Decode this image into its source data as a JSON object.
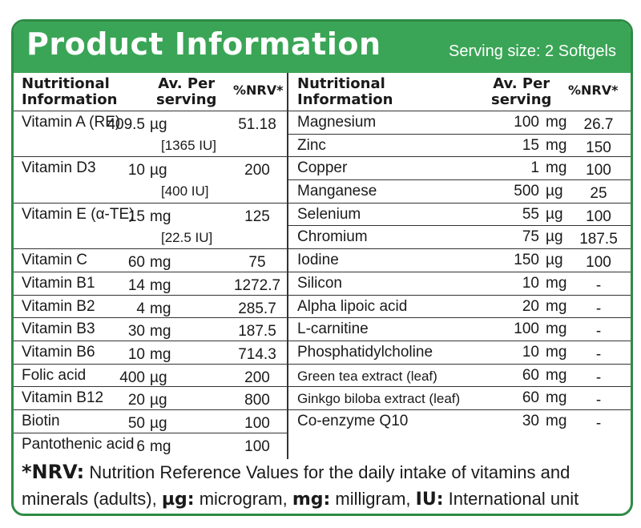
{
  "header": {
    "title": "Product Information",
    "serving": "Serving size: 2 Softgels"
  },
  "columns": {
    "name": "Nutritional\nInformation",
    "amount": "Av. Per\nserving",
    "nrv": "%NRV*"
  },
  "left_rows": [
    {
      "name": "Vitamin A (RE)",
      "num": "409.5",
      "unit": "µg",
      "iu": "[1365 IU]",
      "nrv": "51.18"
    },
    {
      "name": "Vitamin D3",
      "num": "10",
      "unit": "µg",
      "iu": "[400 IU]",
      "nrv": "200"
    },
    {
      "name": "Vitamin E (α-TE)",
      "num": "15",
      "unit": "mg",
      "iu": "[22.5 IU]",
      "nrv": "125"
    },
    {
      "name": "Vitamin C",
      "num": "60",
      "unit": "mg",
      "nrv": "75"
    },
    {
      "name": "Vitamin B1",
      "num": "14",
      "unit": "mg",
      "nrv": "1272.7"
    },
    {
      "name": "Vitamin B2",
      "num": "4",
      "unit": "mg",
      "nrv": "285.7"
    },
    {
      "name": "Vitamin B3",
      "num": "30",
      "unit": "mg",
      "nrv": "187.5"
    },
    {
      "name": "Vitamin B6",
      "num": "10",
      "unit": "mg",
      "nrv": "714.3"
    },
    {
      "name": "Folic acid",
      "num": "400",
      "unit": "µg",
      "nrv": "200"
    },
    {
      "name": "Vitamin B12",
      "num": "20",
      "unit": "µg",
      "nrv": "800"
    },
    {
      "name": "Biotin",
      "num": "50",
      "unit": "µg",
      "nrv": "100"
    },
    {
      "name": "Pantothenic acid",
      "num": "6",
      "unit": "mg",
      "nrv": "100"
    }
  ],
  "right_rows": [
    {
      "name": "Magnesium",
      "num": "100",
      "unit": "mg",
      "nrv": "26.7"
    },
    {
      "name": "Zinc",
      "num": "15",
      "unit": "mg",
      "nrv": "150"
    },
    {
      "name": "Copper",
      "num": "1",
      "unit": "mg",
      "nrv": "100"
    },
    {
      "name": "Manganese",
      "num": "500",
      "unit": "µg",
      "nrv": "25"
    },
    {
      "name": "Selenium",
      "num": "55",
      "unit": "µg",
      "nrv": "100"
    },
    {
      "name": "Chromium",
      "num": "75",
      "unit": "µg",
      "nrv": "187.5"
    },
    {
      "name": "Iodine",
      "num": "150",
      "unit": "µg",
      "nrv": "100"
    },
    {
      "name": "Silicon",
      "num": "10",
      "unit": "mg",
      "nrv": "-"
    },
    {
      "name": "Alpha lipoic acid",
      "num": "20",
      "unit": "mg",
      "nrv": "-"
    },
    {
      "name": "L-carnitine",
      "num": "100",
      "unit": "mg",
      "nrv": "-"
    },
    {
      "name": "Phosphatidylcholine",
      "num": "10",
      "unit": "mg",
      "nrv": "-"
    },
    {
      "name": "Green tea extract (leaf)",
      "num": "60",
      "unit": "mg",
      "nrv": "-"
    },
    {
      "name": "Ginkgo biloba extract (leaf)",
      "num": "60",
      "unit": "mg",
      "nrv": "-"
    },
    {
      "name": "Co-enzyme Q10",
      "num": "30",
      "unit": "mg",
      "nrv": "-"
    }
  ],
  "footer": {
    "nrv_key": "*NRV:",
    "nrv_text": " Nutrition Reference Values for the daily intake of vitamins and minerals (adults), ",
    "ug_key": "µg:",
    "ug_text": " microgram, ",
    "mg_key": "mg:",
    "mg_text": " milligram, ",
    "iu_key": "IU:",
    "iu_text": " International unit"
  },
  "colors": {
    "header_green": "#3aa556",
    "border_green": "#2e8b45"
  }
}
